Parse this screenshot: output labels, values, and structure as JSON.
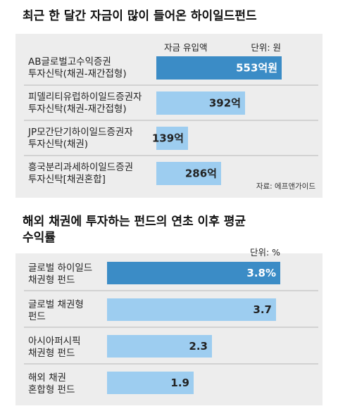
{
  "colors": {
    "panel_bg": "#ededed",
    "highlight_bar": "#3b8cc6",
    "bar": "#9dcdf0",
    "divider": "#b7b7b7"
  },
  "chart_data": [
    {
      "type": "bar",
      "orientation": "horizontal",
      "title": "최근 한 달간 자금이 많이 들어온 하이일드펀드",
      "series_label": "자금 유입액",
      "unit_label": "단위: 원",
      "source": "자료: 에프앤가이드",
      "categories": [
        [
          "AB글로벌고수익증권",
          "투자신탁(채권-재간접형)"
        ],
        [
          "피델리티유럽하이일드증권자",
          "투자신탁(채권-재간접형)"
        ],
        [
          "JP모간단기하이일드증권자",
          "투자신탁(채권)"
        ],
        [
          "흥국분리과세하이일드증권",
          "투자신탁[채권혼합]"
        ]
      ],
      "values": [
        553,
        392,
        139,
        286
      ],
      "value_labels": [
        "553억원",
        "392억",
        "139억",
        "286억"
      ],
      "highlight_index": 0
    },
    {
      "type": "bar",
      "orientation": "horizontal",
      "title": [
        "해외 채권에 투자하는 펀드의 연초 이후 평균",
        "수익률"
      ],
      "unit_label": "단위: %",
      "categories": [
        [
          "글로벌 하이일드",
          "채권형 펀드"
        ],
        [
          "글로벌 채권형",
          "펀드"
        ],
        [
          "아시아퍼시픽",
          "채권형 펀드"
        ],
        [
          "해외 채권",
          "혼합형 펀드"
        ]
      ],
      "values": [
        3.8,
        3.7,
        2.3,
        1.9
      ],
      "value_labels": [
        "3.8%",
        "3.7",
        "2.3",
        "1.9"
      ],
      "highlight_index": 0
    }
  ]
}
